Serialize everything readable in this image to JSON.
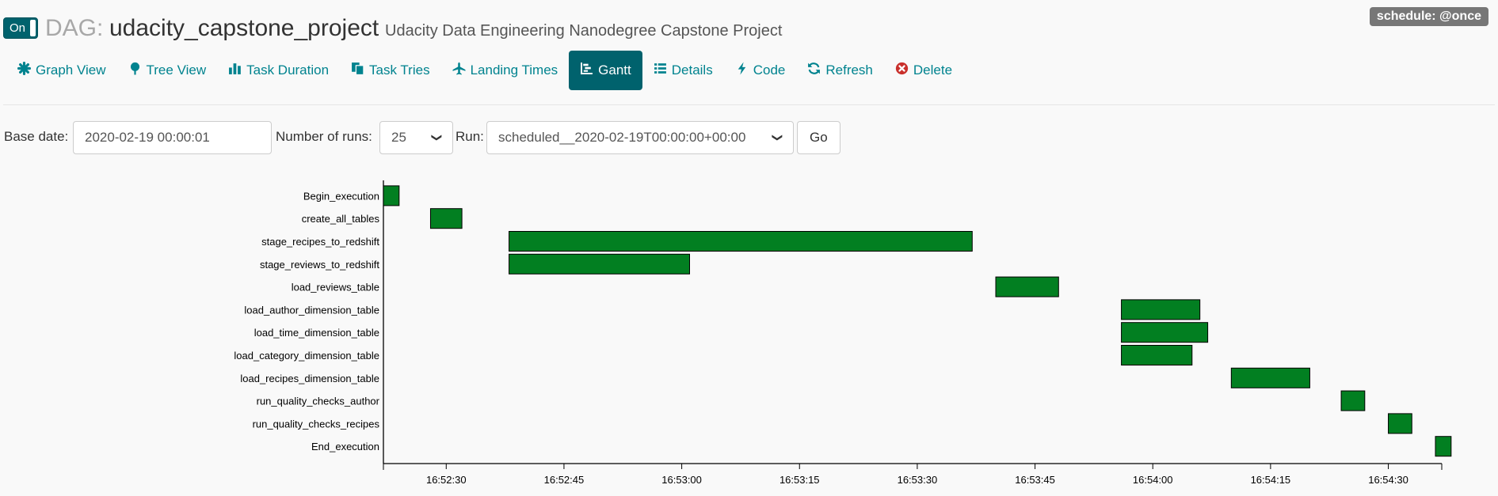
{
  "toggle": {
    "label": "On"
  },
  "header": {
    "prefix": "DAG:",
    "dag_id": "udacity_capstone_project",
    "description": "Udacity Data Engineering Nanodegree Capstone Project",
    "schedule": "schedule: @once"
  },
  "nav": [
    {
      "label": "Graph View",
      "icon": "asterisk-icon",
      "active": false
    },
    {
      "label": "Tree View",
      "icon": "tree-icon",
      "active": false
    },
    {
      "label": "Task Duration",
      "icon": "bar-chart-icon",
      "active": false
    },
    {
      "label": "Task Tries",
      "icon": "copy-icon",
      "active": false
    },
    {
      "label": "Landing Times",
      "icon": "plane-icon",
      "active": false
    },
    {
      "label": "Gantt",
      "icon": "gantt-icon",
      "active": true
    },
    {
      "label": "Details",
      "icon": "list-icon",
      "active": false
    },
    {
      "label": "Code",
      "icon": "flash-icon",
      "active": false
    },
    {
      "label": "Refresh",
      "icon": "refresh-icon",
      "active": false
    },
    {
      "label": "Delete",
      "icon": "remove-circle-icon",
      "active": false
    }
  ],
  "form": {
    "base_date_label": "Base date:",
    "base_date_value": "2020-02-19 00:00:01",
    "num_runs_label": "Number of runs:",
    "num_runs_value": "25",
    "run_label": "Run:",
    "run_value": "scheduled__2020-02-19T00:00:00+00:00",
    "go_label": "Go"
  },
  "colors": {
    "bar_fill": "#027f21",
    "accent": "#00626d",
    "link": "#00838f"
  },
  "chart_data": {
    "type": "gantt",
    "x_unit": "time of day (HH:MM:SS)",
    "xlim": [
      "16:52:22",
      "16:54:36"
    ],
    "tick_labels": [
      "16:52:30",
      "16:52:45",
      "16:53:00",
      "16:53:15",
      "16:53:30",
      "16:53:45",
      "16:54:00",
      "16:54:15",
      "16:54:30"
    ],
    "tasks": [
      {
        "name": "Begin_execution",
        "start": "16:52:22",
        "end": "16:52:24"
      },
      {
        "name": "create_all_tables",
        "start": "16:52:28",
        "end": "16:52:32"
      },
      {
        "name": "stage_recipes_to_redshift",
        "start": "16:52:38",
        "end": "16:53:37"
      },
      {
        "name": "stage_reviews_to_redshift",
        "start": "16:52:38",
        "end": "16:53:01"
      },
      {
        "name": "load_reviews_table",
        "start": "16:53:40",
        "end": "16:53:48"
      },
      {
        "name": "load_author_dimension_table",
        "start": "16:53:56",
        "end": "16:54:06"
      },
      {
        "name": "load_time_dimension_table",
        "start": "16:53:56",
        "end": "16:54:07"
      },
      {
        "name": "load_category_dimension_table",
        "start": "16:53:56",
        "end": "16:54:05"
      },
      {
        "name": "load_recipes_dimension_table",
        "start": "16:54:10",
        "end": "16:54:20"
      },
      {
        "name": "run_quality_checks_author",
        "start": "16:54:24",
        "end": "16:54:27"
      },
      {
        "name": "run_quality_checks_recipes",
        "start": "16:54:30",
        "end": "16:54:33"
      },
      {
        "name": "End_execution",
        "start": "16:54:36",
        "end": "16:54:38"
      }
    ]
  }
}
